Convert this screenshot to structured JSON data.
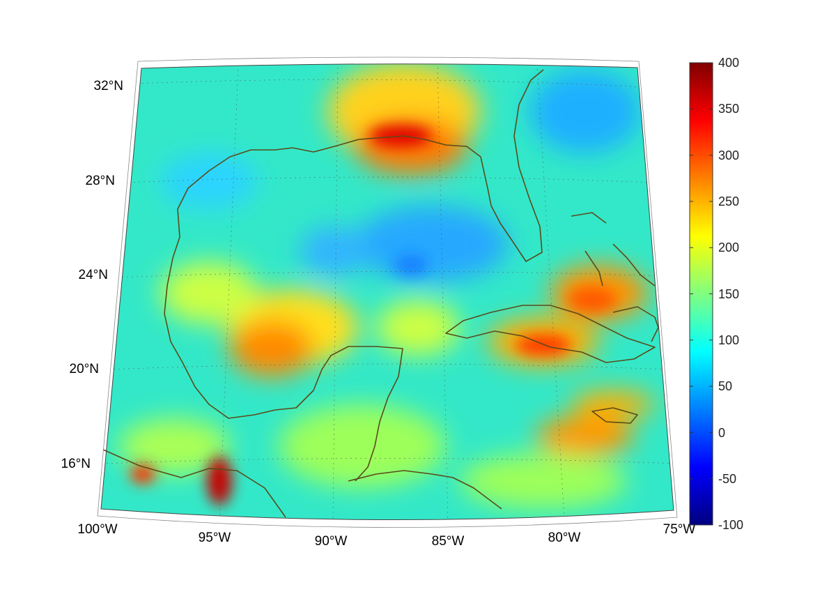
{
  "map": {
    "longitude_labels": [
      "100°W",
      "95°W",
      "90°W",
      "85°W",
      "80°W",
      "75°W"
    ],
    "latitude_labels": [
      "16°N",
      "20°N",
      "24°N",
      "28°N",
      "32°N"
    ],
    "extent": {
      "lon_min": -100,
      "lon_max": -75,
      "lat_min": 14.5,
      "lat_max": 32.5
    },
    "coastline_color": "#5a4a1a",
    "grid": "dotted"
  },
  "colorbar": {
    "colormap": "jet",
    "min": -100,
    "max": 400,
    "tick_labels": [
      "400",
      "350",
      "300",
      "250",
      "200",
      "150",
      "100",
      "50",
      "0",
      "-50",
      "-100"
    ]
  }
}
